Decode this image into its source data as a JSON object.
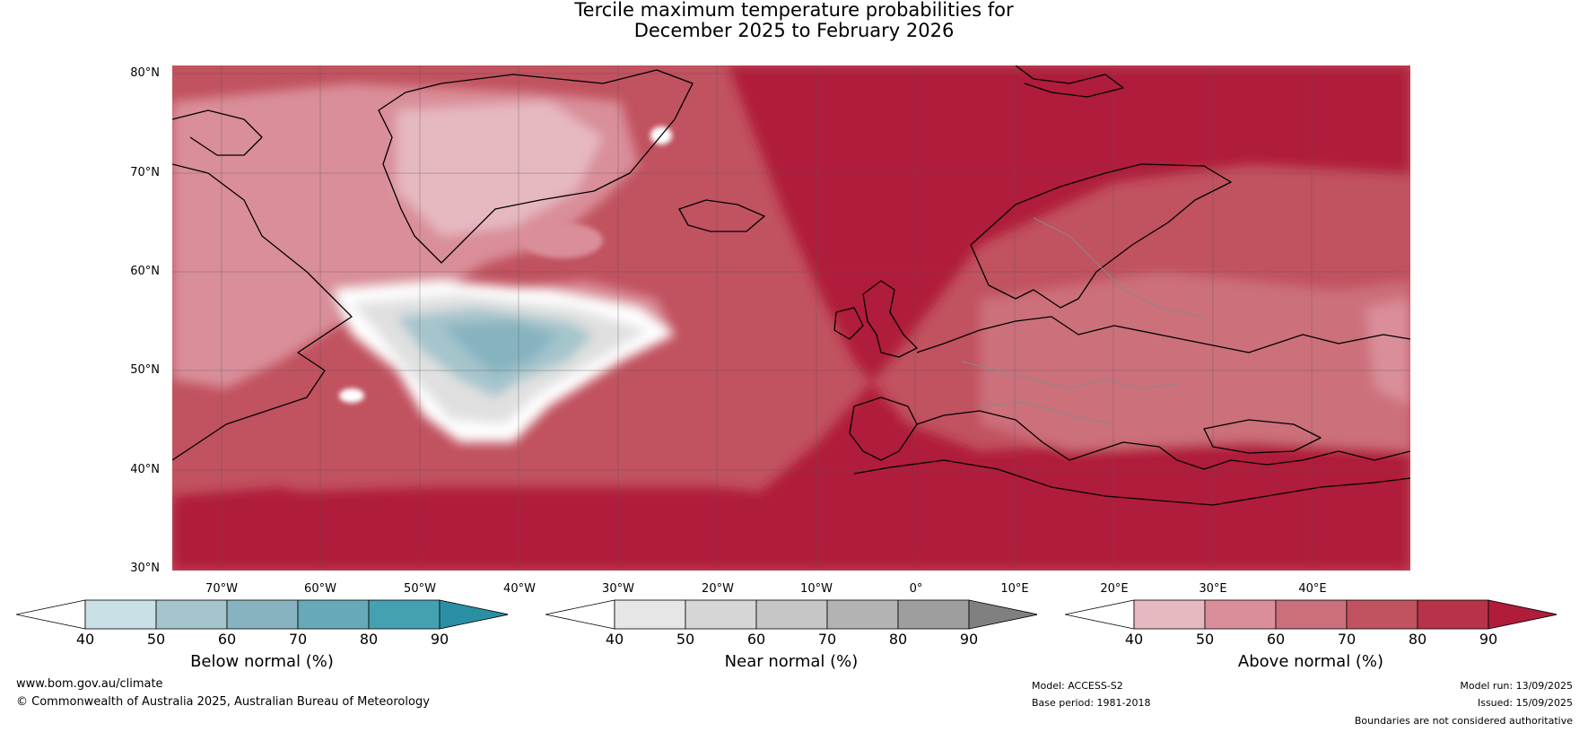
{
  "title_line1": "Tercile maximum temperature probabilities for",
  "title_line2": "December 2025 to February 2026",
  "lat_labels": [
    "80°N",
    "70°N",
    "60°N",
    "50°N",
    "40°N",
    "30°N"
  ],
  "lon_labels": [
    "70°W",
    "60°W",
    "50°W",
    "40°W",
    "30°W",
    "20°W",
    "10°W",
    "0°",
    "10°E",
    "20°E",
    "30°E",
    "40°E"
  ],
  "colorbars": [
    {
      "label": "Below normal (%)",
      "ticks": [
        "40",
        "50",
        "60",
        "70",
        "80",
        "90"
      ],
      "colors": [
        "#ffffff",
        "#c8e0e6",
        "#a5c5cc",
        "#86b3bf",
        "#67a9b8",
        "#44a1b2",
        "#2b8fa3"
      ]
    },
    {
      "label": "Near normal (%)",
      "ticks": [
        "40",
        "50",
        "60",
        "70",
        "80",
        "90"
      ],
      "colors": [
        "#ffffff",
        "#e6e6e6",
        "#d6d6d6",
        "#c6c6c6",
        "#b3b3b3",
        "#9e9e9e",
        "#808080"
      ]
    },
    {
      "label": "Above normal (%)",
      "ticks": [
        "40",
        "50",
        "60",
        "70",
        "80",
        "90"
      ],
      "colors": [
        "#ffffff",
        "#e6b8c0",
        "#d98e99",
        "#cc6f7c",
        "#c1525f",
        "#b6334a",
        "#b01c3a"
      ]
    }
  ],
  "footer": {
    "website": "www.bom.gov.au/climate",
    "copyright": "© Commonwealth of Australia 2025, Australian Bureau of Meteorology",
    "model": "Model: ACCESS-S2",
    "base_period": "Base period: 1981-2018",
    "model_run": "Model run: 13/09/2025",
    "issued": "Issued: 15/09/2025",
    "disclaimer": "Boundaries are not considered authoritative"
  },
  "colors": {
    "above_dark": "#b01c3a",
    "above_mid": "#c1525f",
    "above_light": "#d98e99",
    "near": "#e0e0e0",
    "below": "#86b3bf"
  }
}
